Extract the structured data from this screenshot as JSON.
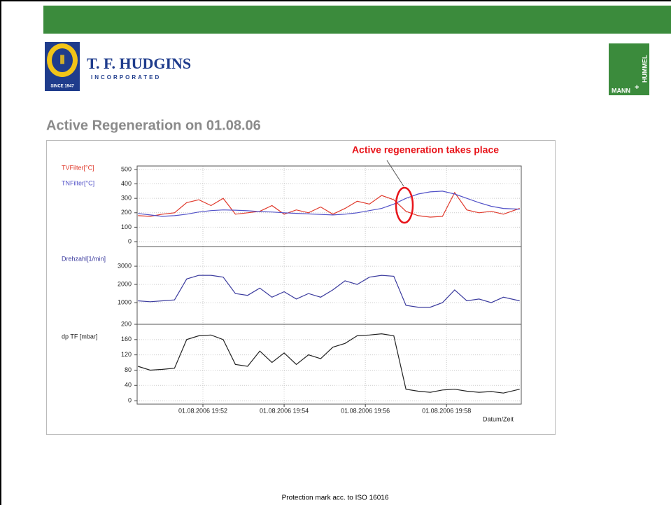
{
  "header": {
    "title": "Active Regeneration on 01.08.06",
    "footer": "Protection mark acc. to ISO 16016",
    "logo_left": {
      "name": "T. F. HUDGINS",
      "sub": "INCORPORATED",
      "since": "SINCE 1947"
    },
    "logo_right": {
      "a": "MANN",
      "b": "HUMMEL"
    }
  },
  "chart_data": [
    {
      "type": "line",
      "annotation": "Active regeneration takes place",
      "x": [
        50.4,
        50.7,
        51.0,
        51.3,
        51.6,
        51.9,
        52.2,
        52.5,
        52.8,
        53.1,
        53.4,
        53.7,
        54.0,
        54.3,
        54.6,
        54.9,
        55.2,
        55.5,
        55.8,
        56.1,
        56.4,
        56.7,
        57.0,
        57.3,
        57.6,
        57.9,
        58.2,
        58.5,
        58.8,
        59.1,
        59.4,
        59.8
      ],
      "xlim": [
        50.38,
        59.84
      ],
      "ylim": [
        -34,
        524
      ],
      "yticks": [
        0,
        100,
        200,
        300,
        400,
        500
      ],
      "series": [
        {
          "name": "TVFilter[°C]",
          "color": "#e0392b",
          "values": [
            180,
            175,
            190,
            200,
            270,
            290,
            250,
            300,
            190,
            200,
            210,
            250,
            190,
            220,
            200,
            240,
            190,
            230,
            280,
            260,
            320,
            290,
            210,
            180,
            170,
            175,
            340,
            220,
            200,
            210,
            190,
            230
          ]
        },
        {
          "name": "TNFilter[°C]",
          "color": "#5252c8",
          "values": [
            195,
            185,
            175,
            180,
            190,
            205,
            215,
            220,
            218,
            214,
            208,
            205,
            200,
            196,
            192,
            188,
            185,
            190,
            200,
            215,
            230,
            260,
            300,
            330,
            345,
            350,
            330,
            300,
            270,
            245,
            230,
            225
          ]
        }
      ]
    },
    {
      "type": "line",
      "x": [
        50.4,
        50.7,
        51.0,
        51.3,
        51.6,
        51.9,
        52.2,
        52.5,
        52.8,
        53.1,
        53.4,
        53.7,
        54.0,
        54.3,
        54.6,
        54.9,
        55.2,
        55.5,
        55.8,
        56.1,
        56.4,
        56.7,
        57.0,
        57.3,
        57.6,
        57.9,
        58.2,
        58.5,
        58.8,
        59.1,
        59.4,
        59.8
      ],
      "xlim": [
        50.38,
        59.84
      ],
      "ylim": [
        -190,
        4080
      ],
      "yticks": [
        1000,
        2000,
        3000
      ],
      "series": [
        {
          "name": "Drehzahl[1/min]",
          "color": "#3b3b9e",
          "values": [
            1100,
            1050,
            1100,
            1150,
            2300,
            2500,
            2500,
            2400,
            1500,
            1400,
            1800,
            1300,
            1600,
            1200,
            1500,
            1300,
            1700,
            2200,
            2000,
            2400,
            2500,
            2450,
            850,
            750,
            750,
            1000,
            1700,
            1100,
            1200,
            1000,
            1300,
            1100
          ]
        }
      ]
    },
    {
      "type": "line",
      "xlabel": "Datum/Zeit",
      "x": [
        50.4,
        50.7,
        51.0,
        51.3,
        51.6,
        51.9,
        52.2,
        52.5,
        52.8,
        53.1,
        53.4,
        53.7,
        54.0,
        54.3,
        54.6,
        54.9,
        55.2,
        55.5,
        55.8,
        56.1,
        56.4,
        56.7,
        57.0,
        57.3,
        57.6,
        57.9,
        58.2,
        58.5,
        58.8,
        59.1,
        59.4,
        59.8
      ],
      "xlim": [
        50.38,
        59.84
      ],
      "ylim": [
        -9,
        200
      ],
      "yticks": [
        0,
        40,
        80,
        120,
        160,
        200
      ],
      "xticks": [
        {
          "value": 52,
          "label": "01.08.2006 19:52"
        },
        {
          "value": 54,
          "label": "01.08.2006 19:54"
        },
        {
          "value": 56,
          "label": "01.08.2006 19:56"
        },
        {
          "value": 58,
          "label": "01.08.2006 19:58"
        }
      ],
      "series": [
        {
          "name": "dp TF [mbar]",
          "color": "#222222",
          "values": [
            90,
            80,
            82,
            85,
            160,
            170,
            172,
            160,
            95,
            90,
            130,
            100,
            125,
            95,
            120,
            110,
            140,
            150,
            170,
            172,
            175,
            170,
            30,
            25,
            22,
            28,
            30,
            25,
            22,
            24,
            20,
            30
          ]
        }
      ]
    }
  ]
}
